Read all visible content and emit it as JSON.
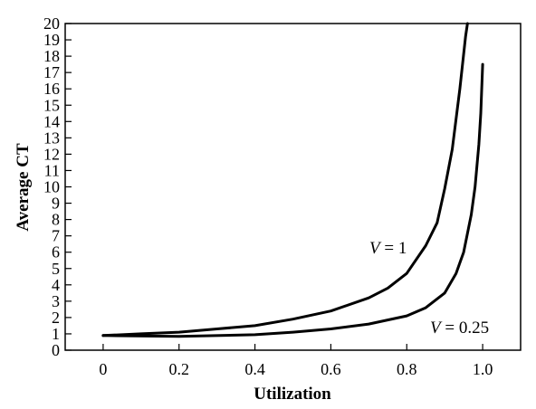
{
  "chart_data": {
    "type": "line",
    "xlabel": "Utilization",
    "ylabel": "Average CT",
    "xlim": [
      -0.1,
      1.1
    ],
    "ylim": [
      0,
      20
    ],
    "xticks": [
      "0",
      "0.2",
      "0.4",
      "0.6",
      "0.8",
      "1.0"
    ],
    "xtick_values": [
      0,
      0.2,
      0.4,
      0.6,
      0.8,
      1.0
    ],
    "yticks": [
      "0",
      "1",
      "2",
      "3",
      "4",
      "5",
      "6",
      "7",
      "8",
      "9",
      "10",
      "11",
      "12",
      "13",
      "14",
      "15",
      "16",
      "17",
      "18",
      "19",
      "20"
    ],
    "ytick_values": [
      0,
      1,
      2,
      3,
      4,
      5,
      6,
      7,
      8,
      9,
      10,
      11,
      12,
      13,
      14,
      15,
      16,
      17,
      18,
      19,
      20
    ],
    "grid": false,
    "series": [
      {
        "name": "V = 1",
        "label_var": "V",
        "label_value": " = 1",
        "x": [
          0,
          0.1,
          0.2,
          0.3,
          0.4,
          0.5,
          0.6,
          0.7,
          0.75,
          0.8,
          0.85,
          0.88,
          0.9,
          0.92,
          0.94,
          0.955,
          0.96
        ],
        "y": [
          0.9,
          1.0,
          1.1,
          1.3,
          1.5,
          1.9,
          2.4,
          3.2,
          3.8,
          4.7,
          6.4,
          7.8,
          9.9,
          12.3,
          16.0,
          19.2,
          20.0
        ]
      },
      {
        "name": "V = 0.25",
        "label_var": "V",
        "label_value": " = 0.25",
        "x": [
          0,
          0.2,
          0.4,
          0.5,
          0.6,
          0.7,
          0.8,
          0.85,
          0.9,
          0.93,
          0.95,
          0.97,
          0.98,
          0.99,
          0.995,
          1.0
        ],
        "y": [
          0.9,
          0.85,
          0.95,
          1.1,
          1.3,
          1.6,
          2.1,
          2.6,
          3.5,
          4.7,
          6.0,
          8.3,
          10.0,
          12.6,
          14.5,
          17.5
        ]
      }
    ]
  }
}
